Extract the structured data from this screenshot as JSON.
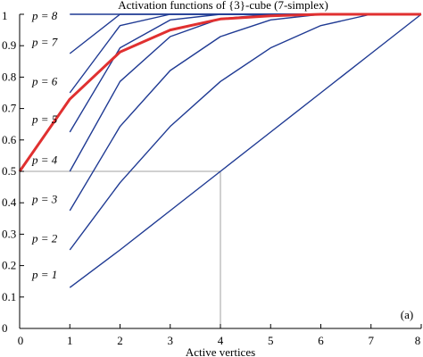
{
  "chart_data": {
    "type": "line",
    "title": "Activation functions of {3}-cube (7-simplex)",
    "xlabel": "Active vertices",
    "ylabel": "",
    "panel_label": "(a)",
    "xlim": [
      0,
      8
    ],
    "ylim": [
      0,
      1
    ],
    "x_ticks": [
      "0",
      "1",
      "2",
      "3",
      "4",
      "5",
      "6",
      "7",
      "8"
    ],
    "y_ticks": [
      "0",
      "0.1",
      "0.2",
      "0.3",
      "0.4",
      "0.5",
      "0.6",
      "0.7",
      "0.8",
      "0.9",
      "1"
    ],
    "grid": false,
    "legend": "none",
    "line_color": "#1f3a93",
    "highlight_color": "#e03030",
    "reference_color": "#a0a0a0",
    "reference_lines": [
      {
        "x": [
          0,
          4
        ],
        "y": [
          0.5,
          0.5
        ]
      },
      {
        "x": [
          4,
          4
        ],
        "y": [
          0.5,
          0
        ]
      }
    ],
    "series": [
      {
        "label": "p = 1",
        "label_at": [
          0.5,
          0.17
        ],
        "x": [
          1,
          2,
          3,
          4,
          5,
          6,
          7,
          8
        ],
        "y": [
          0.13,
          0.25,
          0.375,
          0.5,
          0.625,
          0.75,
          0.875,
          1.0
        ]
      },
      {
        "label": "p = 2",
        "label_at": [
          0.5,
          0.285
        ],
        "x": [
          1,
          2,
          3,
          4,
          5,
          6,
          7,
          8
        ],
        "y": [
          0.25,
          0.464,
          0.643,
          0.786,
          0.893,
          0.964,
          1.0,
          1.0
        ]
      },
      {
        "label": "p = 3",
        "label_at": [
          0.5,
          0.41
        ],
        "x": [
          1,
          2,
          3,
          4,
          5,
          6,
          7,
          8
        ],
        "y": [
          0.375,
          0.643,
          0.821,
          0.929,
          0.982,
          1.0,
          1.0,
          1.0
        ]
      },
      {
        "label": "p = 4",
        "label_at": [
          0.5,
          0.535
        ],
        "x": [
          1,
          2,
          3,
          4,
          5,
          6,
          7,
          8
        ],
        "y": [
          0.5,
          0.786,
          0.929,
          0.986,
          1.0,
          1.0,
          1.0,
          1.0
        ]
      },
      {
        "label": "p = 5",
        "label_at": [
          0.5,
          0.665
        ],
        "x": [
          1,
          2,
          3,
          4,
          5,
          6,
          7,
          8
        ],
        "y": [
          0.625,
          0.893,
          0.982,
          1.0,
          1.0,
          1.0,
          1.0,
          1.0
        ]
      },
      {
        "label": "p = 6",
        "label_at": [
          0.5,
          0.785
        ],
        "x": [
          1,
          2,
          3,
          4,
          5,
          6,
          7,
          8
        ],
        "y": [
          0.75,
          0.964,
          1.0,
          1.0,
          1.0,
          1.0,
          1.0,
          1.0
        ]
      },
      {
        "label": "p = 7",
        "label_at": [
          0.5,
          0.91
        ],
        "x": [
          1,
          2,
          3,
          4,
          5,
          6,
          7,
          8
        ],
        "y": [
          0.875,
          1.0,
          1.0,
          1.0,
          1.0,
          1.0,
          1.0,
          1.0
        ]
      },
      {
        "label": "p = 8",
        "label_at": [
          0.5,
          0.995
        ],
        "x": [
          1,
          2,
          3,
          4,
          5,
          6,
          7,
          8
        ],
        "y": [
          1.0,
          1.0,
          1.0,
          1.0,
          1.0,
          1.0,
          1.0,
          1.0
        ]
      },
      {
        "label": "",
        "highlight": true,
        "x": [
          0,
          1,
          2,
          3,
          4,
          5,
          6,
          7,
          8
        ],
        "y": [
          0.5,
          0.73,
          0.88,
          0.95,
          0.985,
          0.995,
          1.0,
          1.0,
          1.0
        ]
      }
    ]
  }
}
